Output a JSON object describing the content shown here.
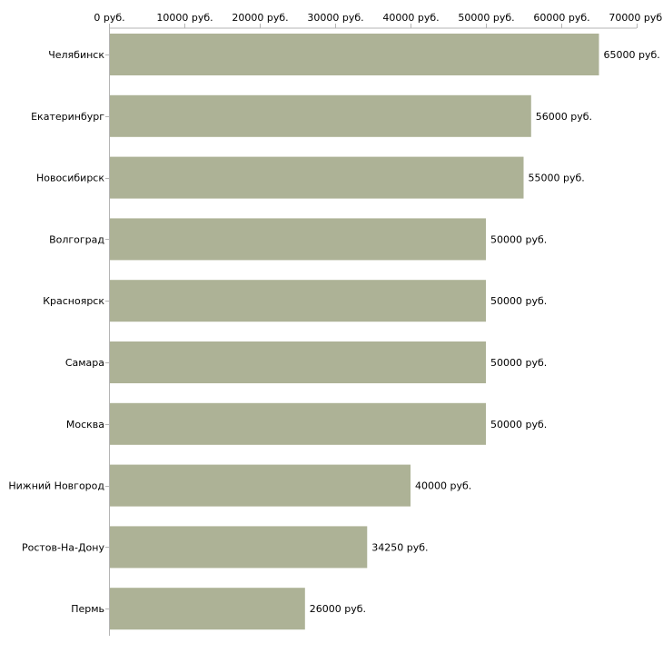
{
  "chart_data": {
    "type": "bar",
    "orientation": "horizontal",
    "title": "",
    "xlabel": "",
    "ylabel": "",
    "unit": "руб.",
    "xlim": [
      0,
      70000
    ],
    "xticks": [
      0,
      10000,
      20000,
      30000,
      40000,
      50000,
      60000,
      70000
    ],
    "xtick_labels": [
      "0 руб.",
      "10000 руб.",
      "20000 руб.",
      "30000 руб.",
      "40000 руб.",
      "50000 руб.",
      "60000 руб.",
      "70000 руб."
    ],
    "categories": [
      "Челябинск",
      "Екатеринбург",
      "Новосибирск",
      "Волгоград",
      "Красноярск",
      "Самара",
      "Москва",
      "Нижний Новгород",
      "Ростов-На-Дону",
      "Пермь"
    ],
    "values": [
      65000,
      56000,
      55000,
      50000,
      50000,
      50000,
      50000,
      40000,
      34250,
      26000
    ],
    "data_labels": [
      "65000 руб.",
      "56000 руб.",
      "55000 руб.",
      "50000 руб.",
      "50000 руб.",
      "50000 руб.",
      "50000 руб.",
      "40000 руб.",
      "34250 руб.",
      "26000 руб."
    ],
    "grid": false,
    "legend": "none",
    "bar_color": "#adb296",
    "axis_color": "#b4b4b4"
  }
}
